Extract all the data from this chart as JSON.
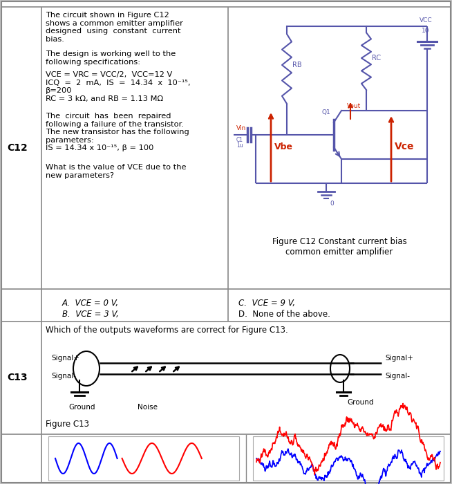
{
  "bg_color": "#c8c8c8",
  "white": "#ffffff",
  "border_color": "#888888",
  "text_color": "#000000",
  "red_color": "#cc2200",
  "wire_color": "#5555aa",
  "c12_label": "C12",
  "c13_label": "C13",
  "c12_text_para1": "The circuit shown in Figure C12\nshows a common emitter amplifier\ndesigned  using  constant  current\nbias.",
  "c12_text_para2": "The design is working well to the\nfollowing specifications:",
  "c12_text_para3": "VCE = VRC = VCC/2,  VCC=12 V\nICQ  =  2  mA,  IS  =  14.34  x  10⁻¹⁵,\nβ=200\nRC = 3 kΩ, and RB = 1.13 MΩ",
  "c12_text_para4": "The  circuit  has  been  repaired\nfollowing a failure of the transistor.\nThe new transistor has the following\nparameters:\nIS = 14.34 x 10⁻¹⁵, β = 100",
  "c12_text_para5": "What is the value of VCE due to the\nnew parameters?",
  "answer_A": "A.  VCE = 0 V,",
  "answer_B": "B.  VCE = 3 V,",
  "answer_C": "C.  VCE = 9 V,",
  "answer_D": "D.  None of the above.",
  "c13_question": "Which of the outputs waveforms are correct for Figure C13.",
  "fig_c12_caption": "Figure C12 Constant current bias\ncommon emitter amplifier",
  "fig_c13_caption": "Figure C13"
}
